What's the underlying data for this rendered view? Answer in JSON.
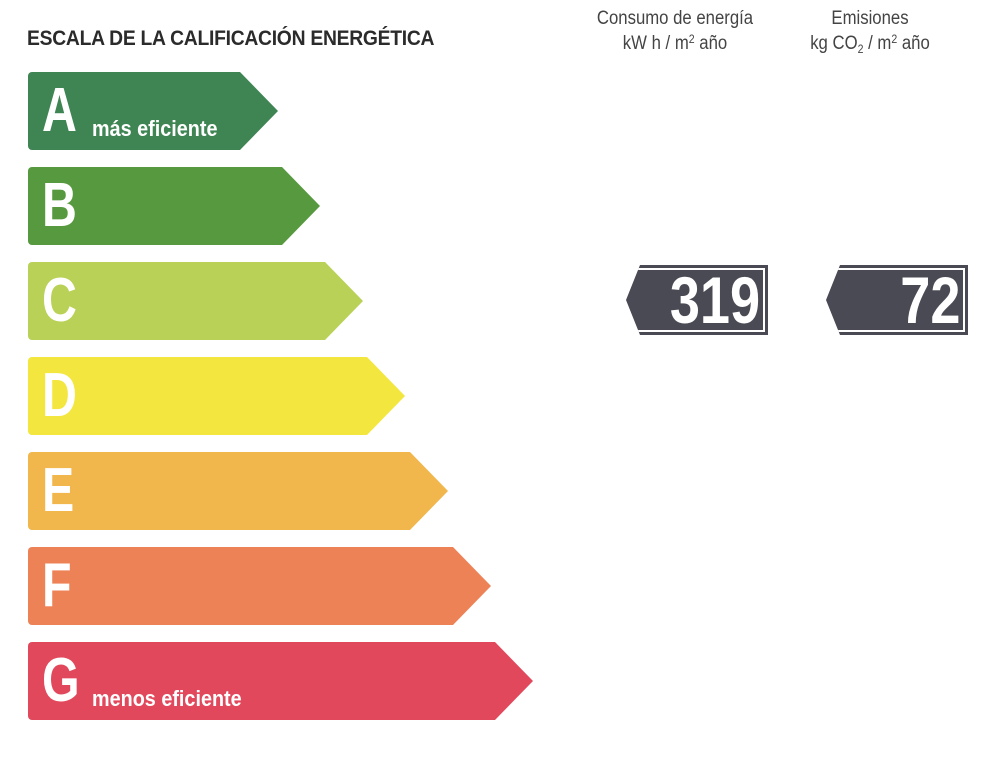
{
  "title": "ESCALA DE LA CALIFICACIÓN ENERGÉTICA",
  "columns": {
    "energy": {
      "line1": "Consumo de energía",
      "line2_prefix": "kW h / m",
      "line2_sup": "2",
      "line2_suffix": " año"
    },
    "emissions": {
      "line1": "Emisiones",
      "line2_prefix": "kg CO",
      "line2_sub": "2",
      "line2_mid": " / m",
      "line2_sup": "2",
      "line2_suffix": " año"
    }
  },
  "scale": [
    {
      "letter": "A",
      "label": "más eficiente",
      "color": "#3f8554"
    },
    {
      "letter": "B",
      "label": "",
      "color": "#57993f"
    },
    {
      "letter": "C",
      "label": "",
      "color": "#b8d156"
    },
    {
      "letter": "D",
      "label": "",
      "color": "#f3e63e"
    },
    {
      "letter": "E",
      "label": "",
      "color": "#f1b64c"
    },
    {
      "letter": "F",
      "label": "",
      "color": "#ee8257"
    },
    {
      "letter": "G",
      "label": "menos eficiente",
      "color": "#e2485c"
    }
  ],
  "rating": {
    "energy_value": "319",
    "emissions_value": "72",
    "badge_color": "#4a4a55",
    "row_letter": "C"
  }
}
